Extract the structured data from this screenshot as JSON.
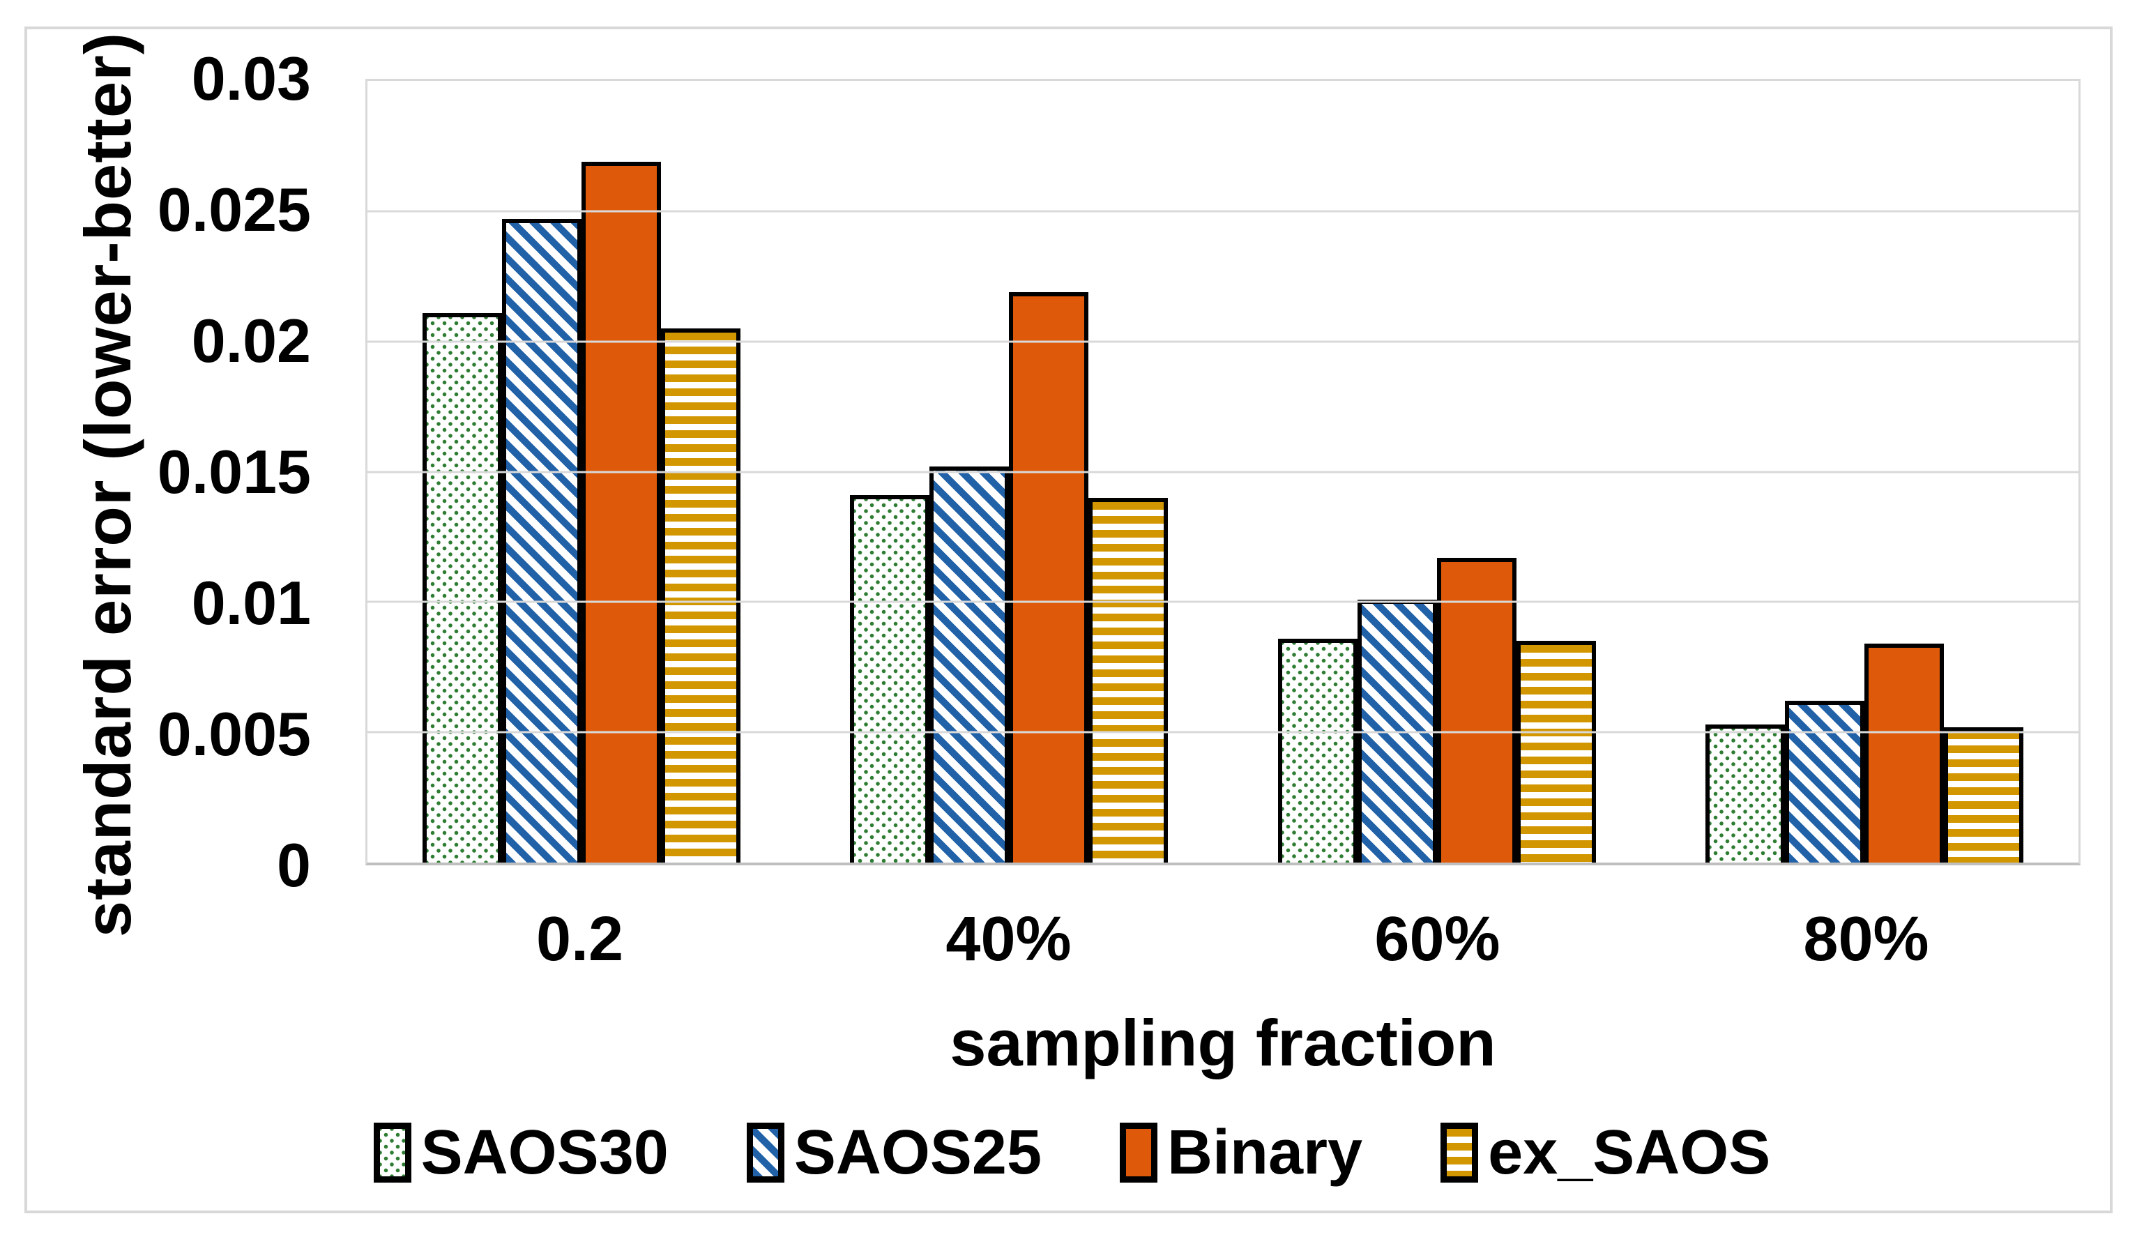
{
  "figure": {
    "background": "#ffffff",
    "frame_color": "#d8d8d8",
    "gridline_color": "#d9d9d9",
    "axis_line_color": "#bfbfbf",
    "bar_border_color": "#000000"
  },
  "chart_data": {
    "type": "bar",
    "title": "",
    "xlabel": "sampling fraction",
    "ylabel": "standard error (lower-better)",
    "categories": [
      "0.2",
      "40%",
      "60%",
      "80%"
    ],
    "y_ticks": [
      "0.03",
      "0.025",
      "0.02",
      "0.015",
      "0.01",
      "0.005",
      "0"
    ],
    "ylim": [
      0,
      0.03
    ],
    "grid": "horizontal gridlines every 0.005",
    "legend_position": "bottom",
    "series": [
      {
        "name": "SAOS30",
        "pattern": "green-dots",
        "color": "#2E7D32",
        "values": [
          0.0211,
          0.0141,
          0.0086,
          0.0053
        ]
      },
      {
        "name": "SAOS25",
        "pattern": "blue-diagonal-stripes",
        "color": "#2061A8",
        "values": [
          0.0247,
          0.0152,
          0.0101,
          0.0062
        ]
      },
      {
        "name": "Binary",
        "pattern": "solid",
        "color": "#DE5A0A",
        "values": [
          0.0269,
          0.0219,
          0.0117,
          0.0084
        ]
      },
      {
        "name": "ex_SAOS",
        "pattern": "gold-horizontal-stripes",
        "color": "#D29600",
        "values": [
          0.0205,
          0.014,
          0.0085,
          0.0052
        ]
      }
    ]
  }
}
